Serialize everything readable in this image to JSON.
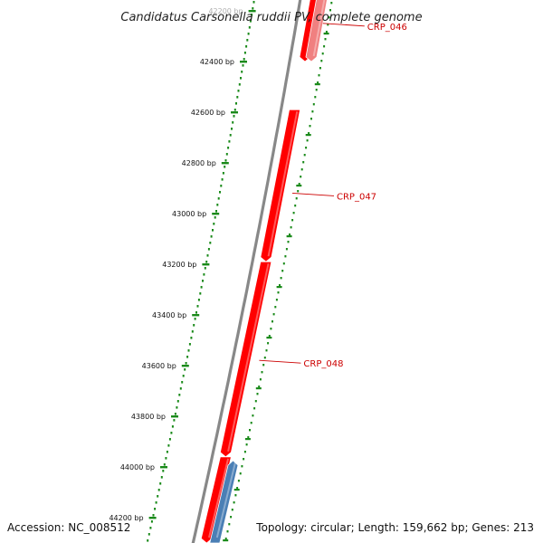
{
  "title": "Candidatus Carsonella ruddii PV, complete genome",
  "footer": {
    "accession": "Accession: NC_008512",
    "summary": "Topology: circular; Length: 159,662 bp; Genes: 213"
  },
  "colors": {
    "forward_gene": "#ff0000",
    "forward_gene_faded": "#f08080",
    "reverse_gene": "#4a7fb5",
    "backbone": "#888888",
    "ruler": "#1a8a1a",
    "label": "#cc0000"
  },
  "ruler": {
    "ticks": [
      {
        "bp": 42200,
        "label": "42200 bp"
      },
      {
        "bp": 42400,
        "label": "42400 bp"
      },
      {
        "bp": 42600,
        "label": "42600 bp"
      },
      {
        "bp": 42800,
        "label": "42800 bp"
      },
      {
        "bp": 43000,
        "label": "43000 bp"
      },
      {
        "bp": 43200,
        "label": "43200 bp"
      },
      {
        "bp": 43400,
        "label": "43400 bp"
      },
      {
        "bp": 43600,
        "label": "43600 bp"
      },
      {
        "bp": 43800,
        "label": "43800 bp"
      },
      {
        "bp": 44000,
        "label": "44000 bp"
      },
      {
        "bp": 44200,
        "label": "44200 bp"
      }
    ]
  },
  "genes": [
    {
      "name": "",
      "start": 42090,
      "end": 42400,
      "strand": "+",
      "track": "outer",
      "style": "forward"
    },
    {
      "name": "",
      "start": 42090,
      "end": 42400,
      "strand": "+",
      "track": "outer2",
      "style": "faded"
    },
    {
      "name": "",
      "start": 42590,
      "end": 43190,
      "strand": "+",
      "track": "inner",
      "style": "forward"
    },
    {
      "name": "",
      "start": 43190,
      "end": 43960,
      "strand": "+",
      "track": "inner",
      "style": "forward"
    },
    {
      "name": "",
      "start": 43960,
      "end": 44300,
      "strand": "+",
      "track": "inner",
      "style": "forward"
    },
    {
      "name": "",
      "start": 43975,
      "end": 44300,
      "strand": "-",
      "track": "outer2",
      "style": "reverse"
    }
  ],
  "gene_labels": [
    {
      "text": "CRP_046",
      "bp": 42260,
      "track": "outer2"
    },
    {
      "text": "CRP_047",
      "bp": 42930,
      "track": "outer2"
    },
    {
      "text": "CRP_048",
      "bp": 43590,
      "track": "outer2"
    }
  ]
}
